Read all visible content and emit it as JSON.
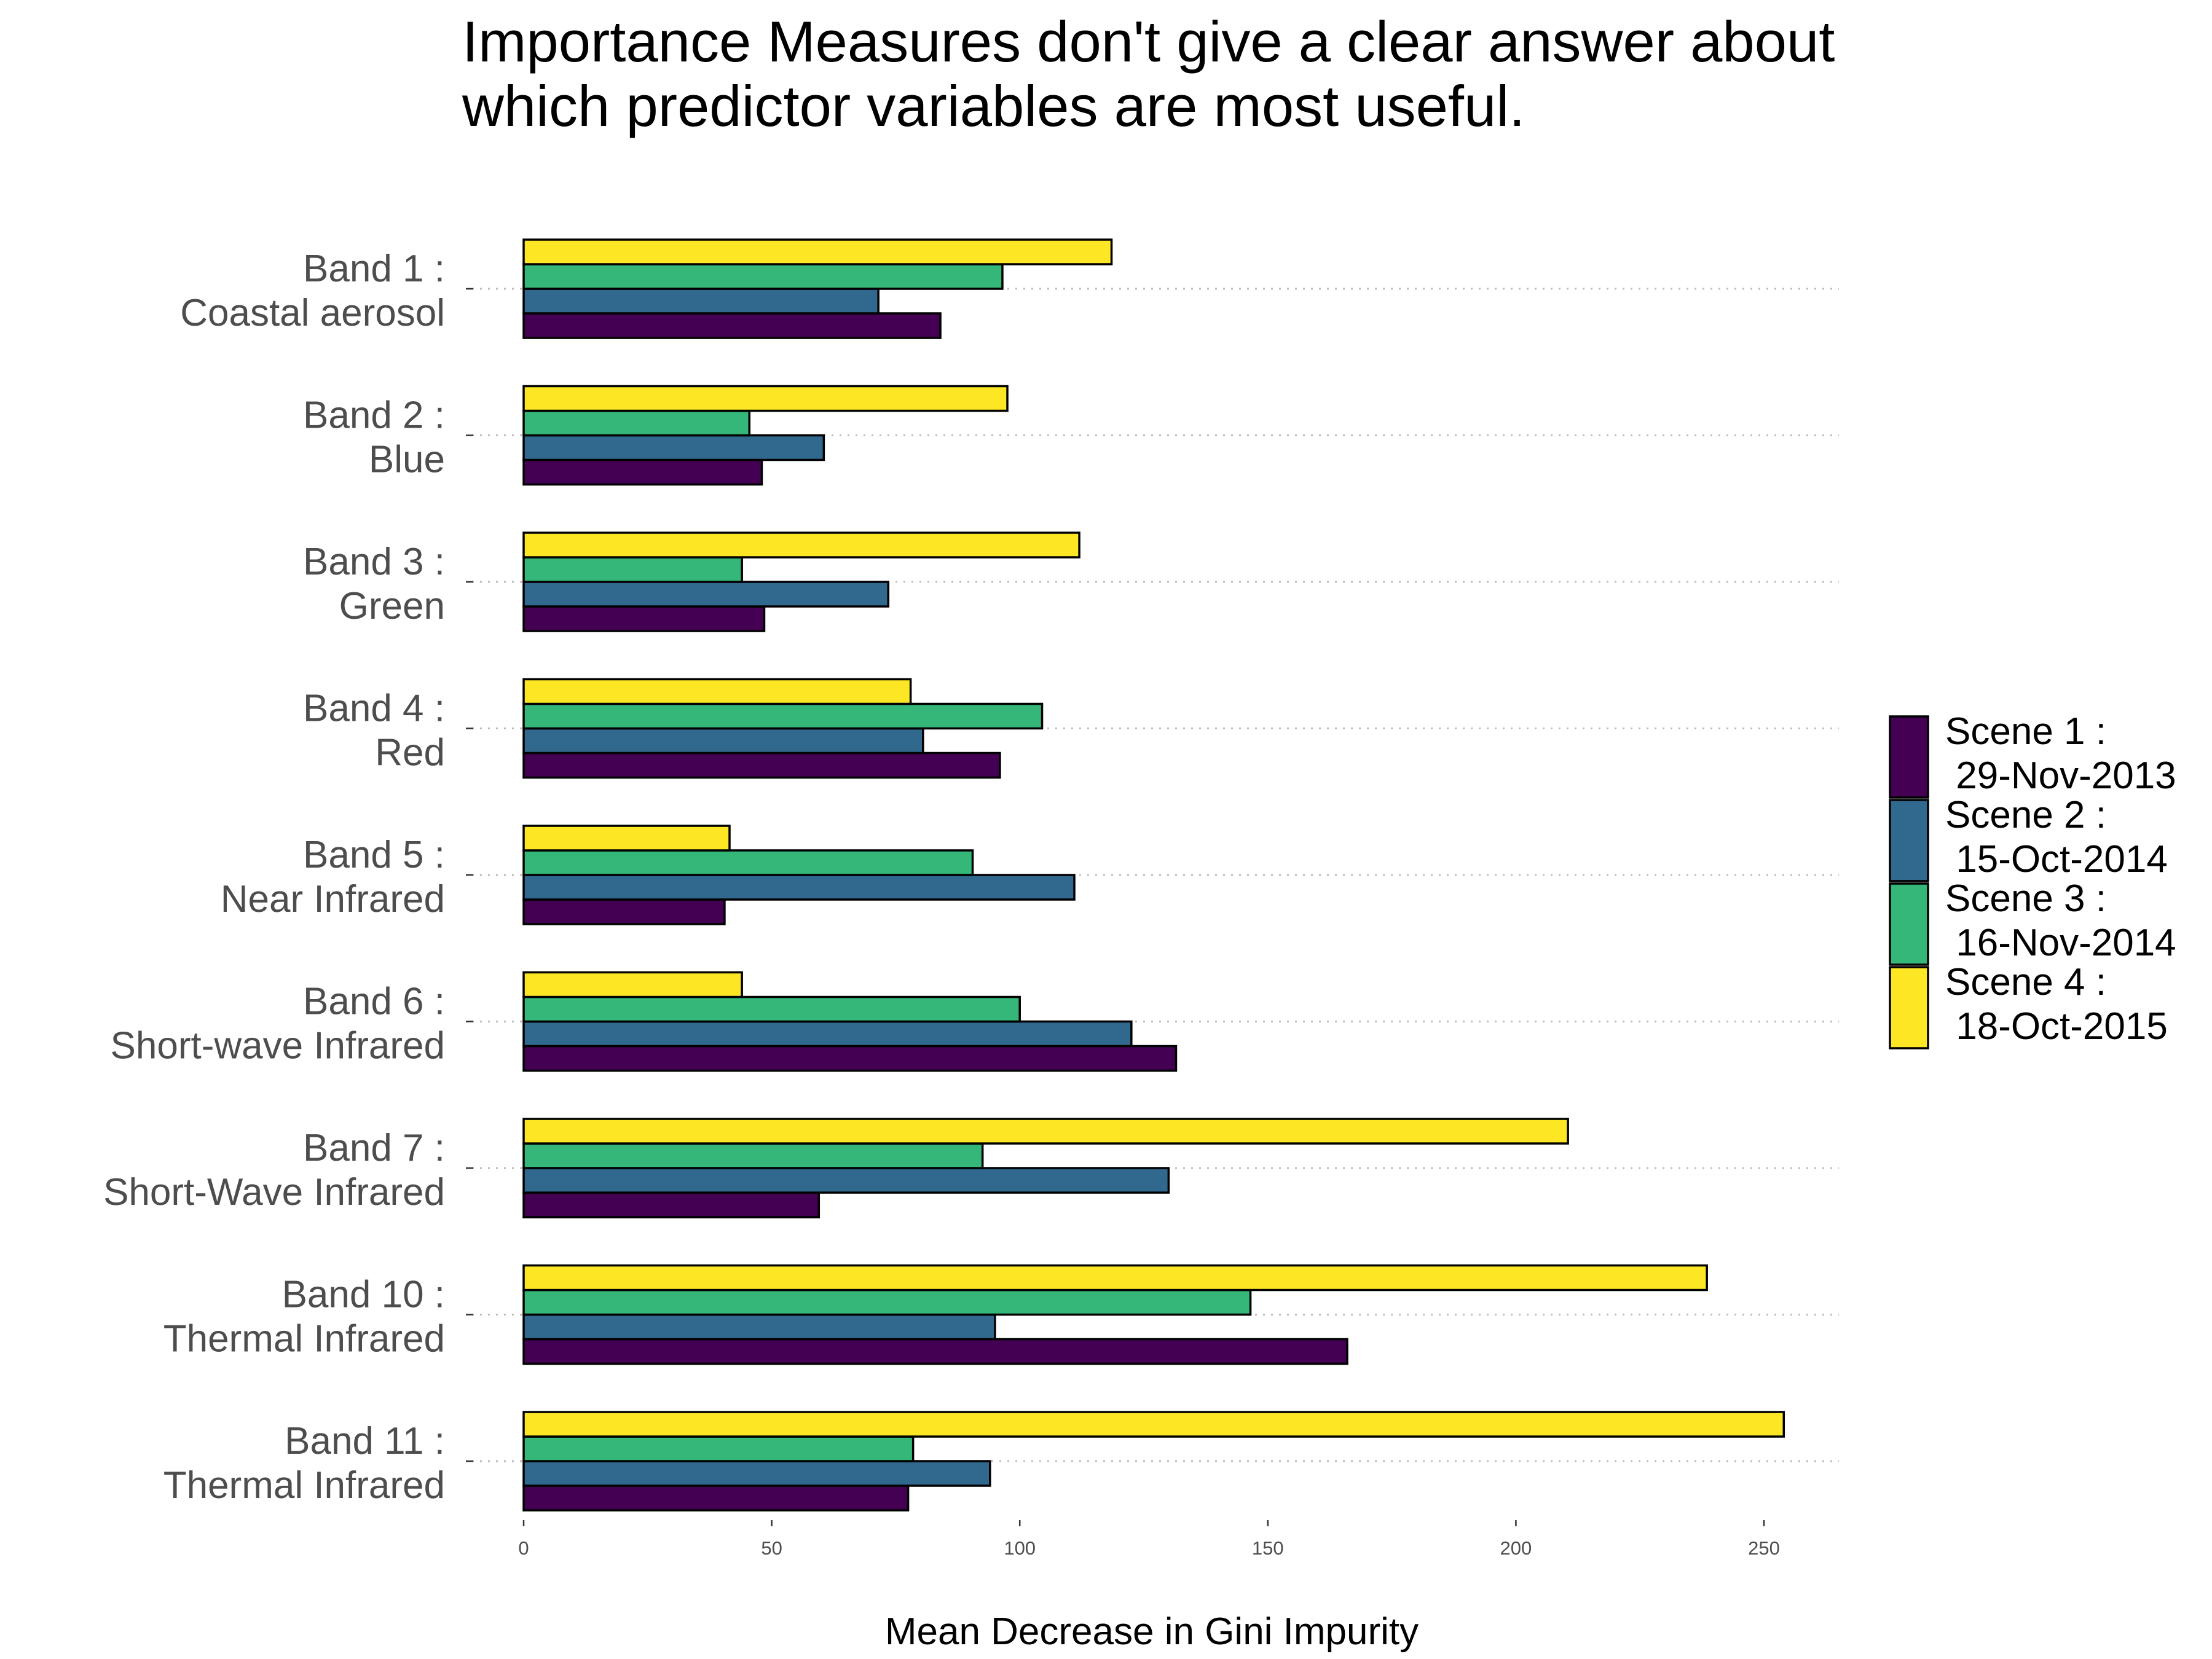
{
  "chart_data": {
    "type": "bar",
    "orientation": "horizontal",
    "title": [
      "Importance Measures don't give a clear answer about",
      "which predictor variables are most useful."
    ],
    "xlabel": "Mean Decrease in Gini Impurity",
    "ylabel": "",
    "xlim": [
      0,
      265
    ],
    "xticks": [
      0,
      50,
      100,
      150,
      200,
      250
    ],
    "grid": "dotted horizontal at categories",
    "legend_position": "right",
    "categories": [
      [
        "Band 1 :",
        "Coastal aerosol"
      ],
      [
        "Band 2 :",
        "Blue"
      ],
      [
        "Band 3 :",
        "Green"
      ],
      [
        "Band 4 :",
        "Red"
      ],
      [
        "Band 5 :",
        "Near Infrared"
      ],
      [
        "Band 6 :",
        "Short-wave Infrared"
      ],
      [
        "Band 7 :",
        "Short-Wave Infrared"
      ],
      [
        "Band 10 :",
        "Thermal Infrared"
      ],
      [
        "Band 11 :",
        "Thermal Infrared"
      ]
    ],
    "series": [
      {
        "name": [
          "Scene 1 :",
          " 29-Nov-2013"
        ],
        "color": "#440154",
        "values": [
          84,
          48,
          48.5,
          96,
          40.5,
          131.5,
          59.5,
          166,
          77.5
        ]
      },
      {
        "name": [
          "Scene 2 :",
          " 15-Oct-2014"
        ],
        "color": "#31688e",
        "values": [
          71.5,
          60.5,
          73.5,
          80.5,
          111,
          122.5,
          130,
          95,
          94
        ]
      },
      {
        "name": [
          "Scene 3 :",
          " 16-Nov-2014"
        ],
        "color": "#35b779",
        "values": [
          96.5,
          45.5,
          44,
          104.5,
          90.5,
          100,
          92.5,
          146.5,
          78.5
        ]
      },
      {
        "name": [
          "Scene 4 :",
          " 18-Oct-2015"
        ],
        "color": "#fde725",
        "values": [
          118.5,
          97.5,
          112,
          78,
          41.5,
          44,
          210.5,
          238.5,
          254
        ]
      }
    ]
  }
}
